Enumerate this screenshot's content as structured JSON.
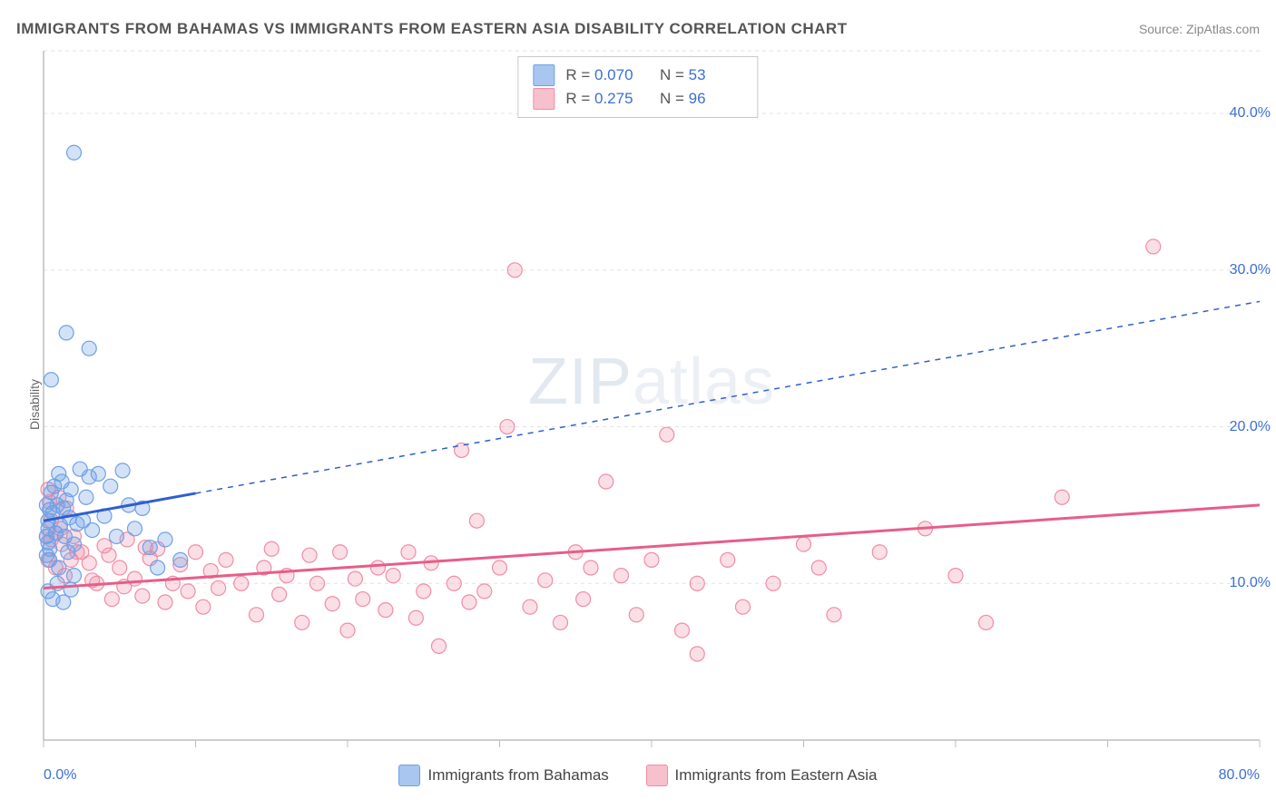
{
  "title": "IMMIGRANTS FROM BAHAMAS VS IMMIGRANTS FROM EASTERN ASIA DISABILITY CORRELATION CHART",
  "source": "Source: ZipAtlas.com",
  "ylabel": "Disability",
  "watermark_a": "ZIP",
  "watermark_b": "atlas",
  "chart": {
    "type": "scatter",
    "xlim": [
      0,
      80
    ],
    "ylim": [
      0,
      44
    ],
    "x_ticks_minor": [
      0,
      10,
      20,
      30,
      40,
      50,
      60,
      70,
      80
    ],
    "x_tick_labels": {
      "min": "0.0%",
      "max": "80.0%"
    },
    "y_gridlines": [
      10,
      20,
      30,
      40
    ],
    "y_tick_labels": [
      "10.0%",
      "20.0%",
      "30.0%",
      "40.0%"
    ],
    "grid_color": "#e3e3e3",
    "grid_dash": "4,4",
    "axis_color": "#bdbdbd",
    "background_color": "#ffffff",
    "marker_radius": 8,
    "marker_stroke_width": 1.2,
    "series": [
      {
        "name": "Immigrants from Bahamas",
        "color_fill": "rgba(110,160,230,0.30)",
        "color_stroke": "#6fa0e6",
        "swatch_fill": "#a8c6ef",
        "swatch_stroke": "#6fa0e6",
        "r": "0.070",
        "n": "53",
        "regression": {
          "x1": 0,
          "y1": 14.0,
          "x2": 80,
          "y2": 28.0,
          "solid_until_x": 10,
          "color": "#2e5fd0",
          "width_solid": 3,
          "width_dash": 1.5,
          "dash": "6,6"
        },
        "points": [
          [
            0.2,
            13.0
          ],
          [
            0.3,
            14.0
          ],
          [
            0.4,
            12.2
          ],
          [
            0.5,
            15.8
          ],
          [
            0.6,
            14.5
          ],
          [
            0.7,
            16.2
          ],
          [
            0.8,
            13.2
          ],
          [
            0.9,
            15.0
          ],
          [
            1.0,
            17.0
          ],
          [
            1.1,
            13.7
          ],
          [
            1.2,
            16.5
          ],
          [
            1.3,
            14.8
          ],
          [
            1.4,
            13.0
          ],
          [
            1.5,
            15.3
          ],
          [
            1.6,
            12.0
          ],
          [
            1.7,
            14.2
          ],
          [
            1.8,
            16.0
          ],
          [
            2.0,
            12.5
          ],
          [
            2.2,
            13.8
          ],
          [
            2.4,
            17.3
          ],
          [
            2.6,
            14.0
          ],
          [
            2.8,
            15.5
          ],
          [
            3.0,
            16.8
          ],
          [
            3.2,
            13.4
          ],
          [
            3.6,
            17.0
          ],
          [
            4.0,
            14.3
          ],
          [
            4.4,
            16.2
          ],
          [
            4.8,
            13.0
          ],
          [
            5.2,
            17.2
          ],
          [
            5.6,
            15.0
          ],
          [
            6.0,
            13.5
          ],
          [
            6.5,
            14.8
          ],
          [
            7.0,
            12.3
          ],
          [
            7.5,
            11.0
          ],
          [
            8.0,
            12.8
          ],
          [
            9.0,
            11.5
          ],
          [
            0.3,
            9.5
          ],
          [
            0.6,
            9.0
          ],
          [
            0.9,
            10.0
          ],
          [
            1.3,
            8.8
          ],
          [
            1.8,
            9.6
          ],
          [
            0.4,
            11.5
          ],
          [
            1.0,
            11.0
          ],
          [
            2.0,
            10.5
          ],
          [
            0.5,
            23.0
          ],
          [
            1.5,
            26.0
          ],
          [
            3.0,
            25.0
          ],
          [
            2.0,
            37.5
          ],
          [
            0.2,
            15.0
          ],
          [
            0.3,
            13.5
          ],
          [
            0.4,
            14.7
          ],
          [
            0.2,
            11.8
          ],
          [
            0.3,
            12.6
          ]
        ]
      },
      {
        "name": "Immigrants from Eastern Asia",
        "color_fill": "rgba(240,140,165,0.28)",
        "color_stroke": "#f08ca5",
        "swatch_fill": "#f7c0cd",
        "swatch_stroke": "#f08ca5",
        "r": "0.275",
        "n": "96",
        "regression": {
          "x1": 0,
          "y1": 9.7,
          "x2": 80,
          "y2": 15.0,
          "solid_until_x": 80,
          "color": "#e75d89",
          "width_solid": 3,
          "width_dash": 0,
          "dash": ""
        },
        "points": [
          [
            0.3,
            16.0
          ],
          [
            0.4,
            15.2
          ],
          [
            0.5,
            14.0
          ],
          [
            0.8,
            13.2
          ],
          [
            1.0,
            15.5
          ],
          [
            1.2,
            12.5
          ],
          [
            1.5,
            14.8
          ],
          [
            1.8,
            11.5
          ],
          [
            2.0,
            13.0
          ],
          [
            2.5,
            12.0
          ],
          [
            3.0,
            11.3
          ],
          [
            3.5,
            10.0
          ],
          [
            4.0,
            12.4
          ],
          [
            4.5,
            9.0
          ],
          [
            5.0,
            11.0
          ],
          [
            5.5,
            12.8
          ],
          [
            6.0,
            10.3
          ],
          [
            6.5,
            9.2
          ],
          [
            7.0,
            11.6
          ],
          [
            7.5,
            12.2
          ],
          [
            8.0,
            8.8
          ],
          [
            8.5,
            10.0
          ],
          [
            9.0,
            11.2
          ],
          [
            9.5,
            9.5
          ],
          [
            10.0,
            12.0
          ],
          [
            10.5,
            8.5
          ],
          [
            11.0,
            10.8
          ],
          [
            11.5,
            9.7
          ],
          [
            12.0,
            11.5
          ],
          [
            13.0,
            10.0
          ],
          [
            14.0,
            8.0
          ],
          [
            14.5,
            11.0
          ],
          [
            15.0,
            12.2
          ],
          [
            15.5,
            9.3
          ],
          [
            16.0,
            10.5
          ],
          [
            17.0,
            7.5
          ],
          [
            17.5,
            11.8
          ],
          [
            18.0,
            10.0
          ],
          [
            19.0,
            8.7
          ],
          [
            19.5,
            12.0
          ],
          [
            20.0,
            7.0
          ],
          [
            20.5,
            10.3
          ],
          [
            21.0,
            9.0
          ],
          [
            22.0,
            11.0
          ],
          [
            22.5,
            8.3
          ],
          [
            23.0,
            10.5
          ],
          [
            24.0,
            12.0
          ],
          [
            24.5,
            7.8
          ],
          [
            25.0,
            9.5
          ],
          [
            25.5,
            11.3
          ],
          [
            26.0,
            6.0
          ],
          [
            27.0,
            10.0
          ],
          [
            27.5,
            18.5
          ],
          [
            28.0,
            8.8
          ],
          [
            28.5,
            14.0
          ],
          [
            29.0,
            9.5
          ],
          [
            30.0,
            11.0
          ],
          [
            30.5,
            20.0
          ],
          [
            31.0,
            30.0
          ],
          [
            32.0,
            8.5
          ],
          [
            33.0,
            10.2
          ],
          [
            34.0,
            7.5
          ],
          [
            35.0,
            12.0
          ],
          [
            35.5,
            9.0
          ],
          [
            36.0,
            11.0
          ],
          [
            37.0,
            16.5
          ],
          [
            38.0,
            10.5
          ],
          [
            39.0,
            8.0
          ],
          [
            40.0,
            11.5
          ],
          [
            41.0,
            19.5
          ],
          [
            42.0,
            7.0
          ],
          [
            43.0,
            10.0
          ],
          [
            45.0,
            11.5
          ],
          [
            46.0,
            8.5
          ],
          [
            48.0,
            10.0
          ],
          [
            50.0,
            12.5
          ],
          [
            51.0,
            11.0
          ],
          [
            52.0,
            8.0
          ],
          [
            55.0,
            12.0
          ],
          [
            58.0,
            13.5
          ],
          [
            60.0,
            10.5
          ],
          [
            62.0,
            7.5
          ],
          [
            67.0,
            15.5
          ],
          [
            73.0,
            31.5
          ],
          [
            0.2,
            13.0
          ],
          [
            0.3,
            11.5
          ],
          [
            0.5,
            12.8
          ],
          [
            0.8,
            11.0
          ],
          [
            1.1,
            13.5
          ],
          [
            1.4,
            10.5
          ],
          [
            2.2,
            12.0
          ],
          [
            3.2,
            10.2
          ],
          [
            4.3,
            11.8
          ],
          [
            5.3,
            9.8
          ],
          [
            6.7,
            12.3
          ],
          [
            43.0,
            5.5
          ]
        ]
      }
    ]
  },
  "bottom_legend": [
    {
      "label": "Immigrants from Bahamas",
      "fill": "#a8c6ef",
      "stroke": "#6fa0e6"
    },
    {
      "label": "Immigrants from Eastern Asia",
      "fill": "#f7c0cd",
      "stroke": "#f08ca5"
    }
  ]
}
